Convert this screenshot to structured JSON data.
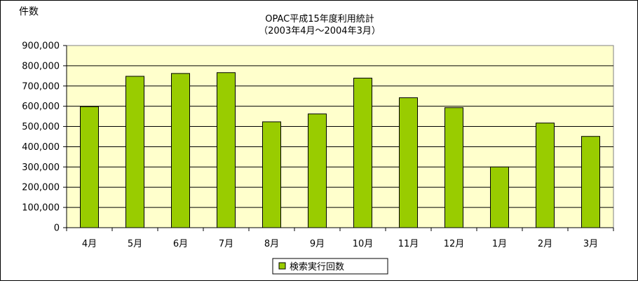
{
  "chart_data": {
    "type": "bar",
    "title": "OPAC平成15年度利用統計",
    "subtitle": "（2003年4月～2004年3月）",
    "ylabel": "件数",
    "xlabel": "",
    "categories": [
      "4月",
      "5月",
      "6月",
      "7月",
      "8月",
      "9月",
      "10月",
      "11月",
      "12月",
      "1月",
      "2月",
      "3月"
    ],
    "series": [
      {
        "name": "検索実行回数",
        "values": [
          598000,
          748000,
          762000,
          766000,
          523000,
          562000,
          739000,
          642000,
          593000,
          300000,
          517000,
          451000
        ],
        "color": "#99cc00"
      }
    ],
    "ylim": [
      0,
      900000
    ],
    "yticks": [
      "0",
      "100,000",
      "200,000",
      "300,000",
      "400,000",
      "500,000",
      "600,000",
      "700,000",
      "800,000",
      "900,000"
    ],
    "plot_background": "#ffffcc",
    "grid": true,
    "legend": "bottom"
  }
}
